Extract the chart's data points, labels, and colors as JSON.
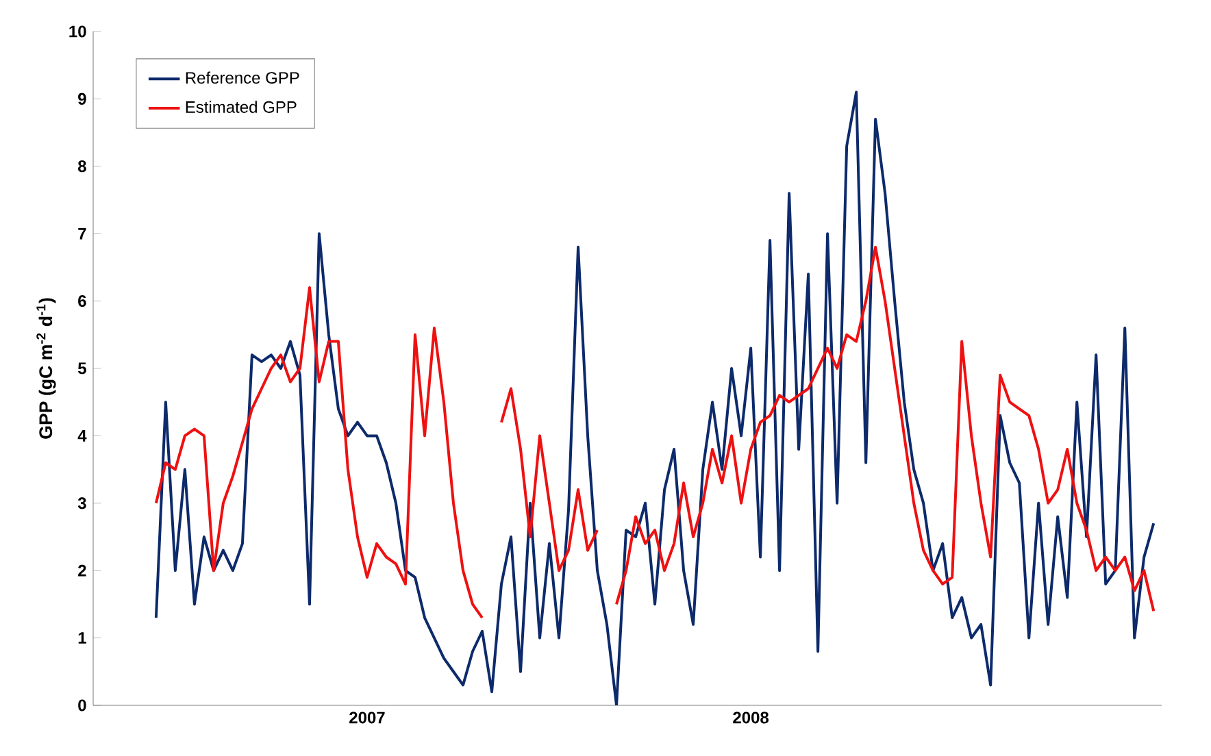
{
  "chart_data": {
    "type": "line",
    "ylabel": "GPP (gC m$^{-2}$ d$^{-1}$)",
    "x": [
      2006.45,
      2006.475,
      2006.5,
      2006.525,
      2006.55,
      2006.575,
      2006.6,
      2006.625,
      2006.65,
      2006.675,
      2006.7,
      2006.725,
      2006.75,
      2006.775,
      2006.8,
      2006.825,
      2006.85,
      2006.875,
      2006.9,
      2006.925,
      2006.95,
      2006.975,
      2007.0,
      2007.025,
      2007.05,
      2007.075,
      2007.1,
      2007.125,
      2007.15,
      2007.175,
      2007.2,
      2007.225,
      2007.25,
      2007.275,
      2007.3,
      2007.325,
      2007.35,
      2007.375,
      2007.4,
      2007.425,
      2007.45,
      2007.475,
      2007.5,
      2007.525,
      2007.55,
      2007.575,
      2007.6,
      2007.625,
      2007.65,
      2007.675,
      2007.7,
      2007.725,
      2007.75,
      2007.775,
      2007.8,
      2007.825,
      2007.85,
      2007.875,
      2007.9,
      2007.925,
      2007.95,
      2007.975,
      2008.0,
      2008.025,
      2008.05,
      2008.075,
      2008.1,
      2008.125,
      2008.15,
      2008.175,
      2008.2,
      2008.225,
      2008.25,
      2008.275,
      2008.3,
      2008.325,
      2008.35,
      2008.375,
      2008.4,
      2008.425,
      2008.45,
      2008.475,
      2008.5,
      2008.525,
      2008.55,
      2008.575,
      2008.6,
      2008.625,
      2008.65,
      2008.675,
      2008.7,
      2008.725,
      2008.75,
      2008.775,
      2008.8,
      2008.825,
      2008.85,
      2008.875,
      2008.9,
      2008.925,
      2008.95,
      2008.975,
      2009.0,
      2009.025,
      2009.05
    ],
    "series": [
      {
        "name": "Reference GPP",
        "color": "#0d2a6b",
        "values": [
          1.3,
          4.5,
          2.0,
          3.5,
          1.5,
          2.5,
          2.0,
          2.3,
          2.0,
          2.4,
          5.2,
          5.1,
          5.2,
          5.0,
          5.4,
          4.9,
          1.5,
          7.0,
          5.5,
          4.4,
          4.0,
          4.2,
          4.0,
          4.0,
          3.6,
          3.0,
          2.0,
          1.9,
          1.3,
          1.0,
          0.7,
          0.5,
          0.3,
          0.8,
          1.1,
          0.2,
          1.8,
          2.5,
          0.5,
          3.0,
          1.0,
          2.4,
          1.0,
          2.9,
          6.8,
          4.0,
          2.0,
          1.2,
          0.0,
          2.6,
          2.5,
          3.0,
          1.5,
          3.2,
          3.8,
          2.0,
          1.2,
          3.5,
          4.5,
          3.5,
          5.0,
          4.0,
          5.3,
          2.2,
          6.9,
          2.0,
          7.6,
          3.8,
          6.4,
          0.8,
          7.0,
          3.0,
          8.3,
          9.1,
          3.6,
          8.7,
          7.6,
          6.0,
          4.5,
          3.5,
          3.0,
          2.0,
          2.4,
          1.3,
          1.6,
          1.0,
          1.2,
          0.3,
          4.3,
          3.6,
          3.3,
          1.0,
          3.0,
          1.2,
          2.8,
          1.6,
          4.5,
          2.5,
          5.2,
          1.8,
          2.0,
          5.6,
          1.0,
          2.2,
          2.7
        ]
      },
      {
        "name": "Estimated GPP",
        "color": "#ee1111",
        "values": [
          3.0,
          3.6,
          3.5,
          4.0,
          4.1,
          4.0,
          2.0,
          3.0,
          3.4,
          3.9,
          4.4,
          4.7,
          5.0,
          5.2,
          4.8,
          5.0,
          6.2,
          4.8,
          5.4,
          5.4,
          3.5,
          2.5,
          1.9,
          2.4,
          2.2,
          2.1,
          1.8,
          5.5,
          4.0,
          5.6,
          4.5,
          3.0,
          2.0,
          1.5,
          1.3,
          null,
          4.2,
          4.7,
          3.8,
          2.5,
          4.0,
          3.0,
          2.0,
          2.3,
          3.2,
          2.3,
          2.6,
          null,
          1.5,
          2.0,
          2.8,
          2.4,
          2.6,
          2.0,
          2.4,
          3.3,
          2.5,
          3.0,
          3.8,
          3.3,
          4.0,
          3.0,
          3.8,
          4.2,
          4.3,
          4.6,
          4.5,
          4.6,
          4.7,
          5.0,
          5.3,
          5.0,
          5.5,
          5.4,
          6.0,
          6.8,
          6.0,
          5.0,
          4.0,
          3.0,
          2.3,
          2.0,
          1.8,
          1.9,
          5.4,
          4.0,
          3.0,
          2.2,
          4.9,
          4.5,
          4.4,
          4.3,
          3.8,
          3.0,
          3.2,
          3.8,
          3.0,
          2.6,
          2.0,
          2.2,
          2.0,
          2.2,
          1.7,
          2.0,
          1.4
        ]
      }
    ],
    "xlim": [
      2006.286,
      2009.071
    ],
    "xticks": [
      2007,
      2008
    ],
    "ylim": [
      0,
      10
    ],
    "yticks": [
      0,
      1,
      2,
      3,
      4,
      5,
      6,
      7,
      8,
      9,
      10
    ],
    "legend": "top left",
    "grid": false,
    "marker": "none",
    "line_style": "solid"
  }
}
